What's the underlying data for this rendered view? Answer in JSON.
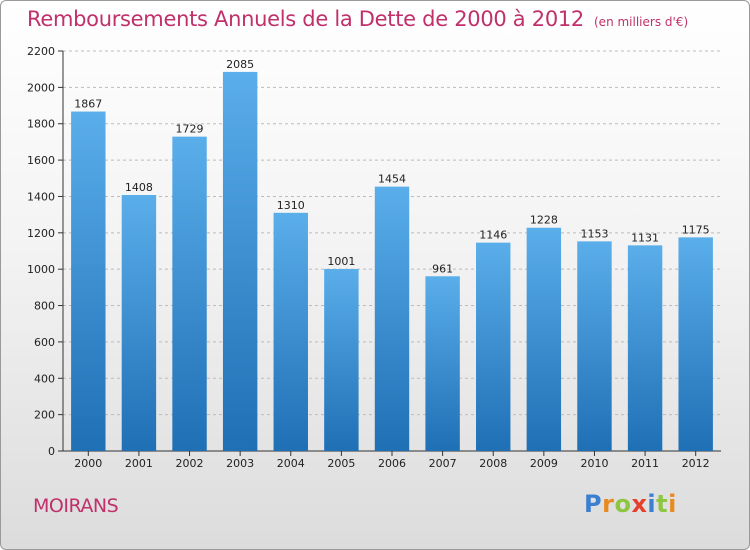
{
  "header": {
    "title": "Remboursements Annuels de la Dette de 2000 à 2012",
    "subtitle": "(en milliers d'€)"
  },
  "footer": {
    "city": "MOIRANS",
    "logo_letters": [
      "P",
      "r",
      "o",
      "x",
      "i",
      "t",
      "i"
    ]
  },
  "colors": {
    "title": "#c0306a",
    "bar_top": "#5aaeea",
    "bar_bottom": "#1f6fb5",
    "grid": "#bdbdbd"
  },
  "chart_data": {
    "type": "bar",
    "title": "Remboursements Annuels de la Dette de 2000 à 2012",
    "subtitle": "(en milliers d'€)",
    "xlabel": "",
    "ylabel": "",
    "categories": [
      "2000",
      "2001",
      "2002",
      "2003",
      "2004",
      "2005",
      "2006",
      "2007",
      "2008",
      "2009",
      "2010",
      "2011",
      "2012"
    ],
    "values": [
      1867,
      1408,
      1729,
      2085,
      1310,
      1001,
      1454,
      961,
      1146,
      1228,
      1153,
      1131,
      1175
    ],
    "ylim": [
      0,
      2200
    ],
    "yticks": [
      0,
      200,
      400,
      600,
      800,
      1000,
      1200,
      1400,
      1600,
      1800,
      2000,
      2200
    ],
    "grid": true,
    "data_labels": true
  }
}
